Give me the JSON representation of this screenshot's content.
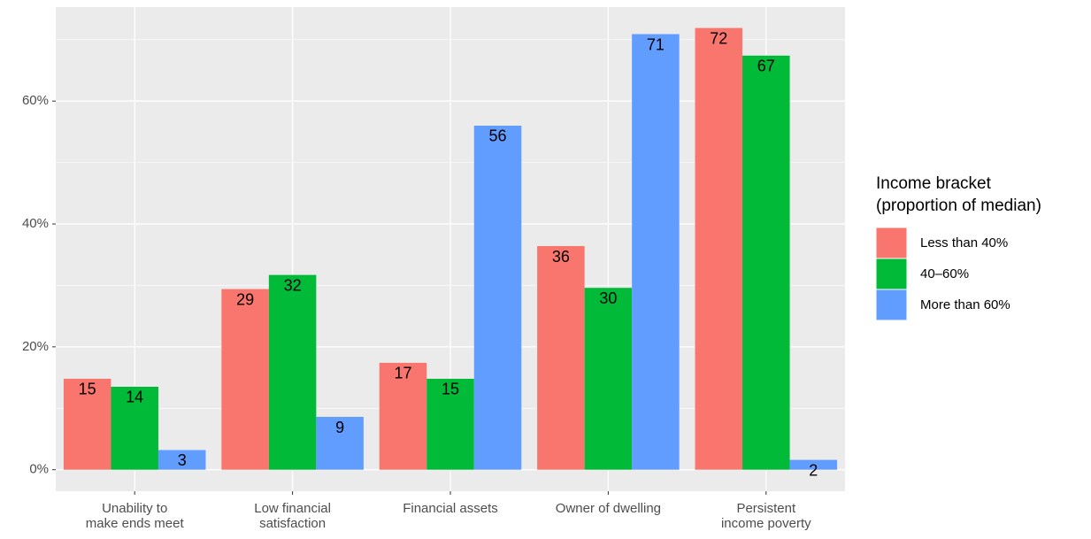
{
  "chart_data": {
    "type": "bar",
    "categories": [
      "Unability to\nmake ends meet",
      "Low financial\nsatisfaction",
      "Financial assets",
      "Owner of dwelling",
      "Persistent\nincome poverty"
    ],
    "series": [
      {
        "name": "Less than 40%",
        "color": "#F8766D",
        "values": [
          14.8,
          29.4,
          17.4,
          36.4,
          71.9
        ],
        "value_labels": [
          "15",
          "29",
          "17",
          "36",
          "72"
        ]
      },
      {
        "name": "40–60%",
        "color": "#00BA38",
        "values": [
          13.5,
          31.7,
          14.8,
          29.6,
          67.4
        ],
        "value_labels": [
          "14",
          "32",
          "15",
          "30",
          "67"
        ]
      },
      {
        "name": "More than 60%",
        "color": "#619CFF",
        "values": [
          3.2,
          8.6,
          56.0,
          70.9,
          1.6
        ],
        "value_labels": [
          "3",
          "9",
          "56",
          "71",
          "2"
        ]
      }
    ],
    "legend_title": [
      "Income bracket",
      "(proportion of median)"
    ],
    "ylim": [
      -3.5,
      75.3
    ],
    "yticks": [
      {
        "value": 0,
        "label": "0%"
      },
      {
        "value": 20,
        "label": "20%"
      },
      {
        "value": 40,
        "label": "40%"
      },
      {
        "value": 60,
        "label": "60%"
      }
    ],
    "y_minor_grid": [
      10,
      30,
      50,
      70
    ],
    "grid": true,
    "panel_color": "#EBEBEB",
    "legend": "right"
  }
}
